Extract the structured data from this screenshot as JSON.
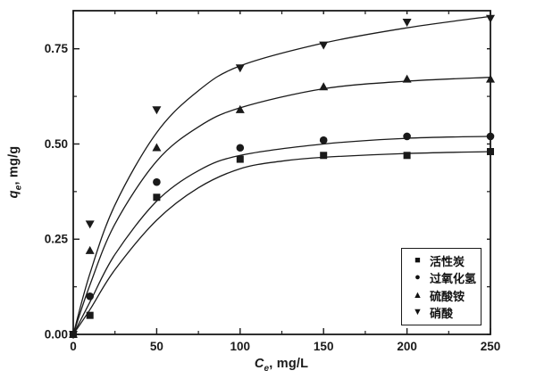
{
  "colors": {
    "ink": "#1a1a1a",
    "background": "#ffffff"
  },
  "chart_data": {
    "type": "scatter",
    "title": "",
    "xlabel": {
      "symbol": "C",
      "subscript": "e",
      "unit": ", mg/L"
    },
    "ylabel": {
      "symbol": "q",
      "subscript": "e",
      "unit": ", mg/g"
    },
    "xlim": [
      0,
      250
    ],
    "ylim": [
      0,
      0.85
    ],
    "grid": false,
    "legend_position": "bottom-right",
    "x_major_ticks": [
      0,
      50,
      100,
      150,
      200,
      250
    ],
    "x_tick_labels": [
      "0",
      "50",
      "100",
      "150",
      "200",
      "250"
    ],
    "x_minor_ticks": [
      25,
      75,
      125,
      175,
      225
    ],
    "y_major_ticks": [
      0,
      0.25,
      0.5,
      0.75
    ],
    "y_tick_labels": [
      "0.00",
      "0.25",
      "0.50",
      "0.75"
    ],
    "y_minor_ticks": [
      0.125,
      0.375,
      0.625
    ],
    "series": [
      {
        "name": "活性炭",
        "marker": "square",
        "marker_glyph": "■",
        "points": [
          [
            0,
            0
          ],
          [
            10,
            0.05
          ],
          [
            50,
            0.36
          ],
          [
            100,
            0.46
          ],
          [
            150,
            0.47
          ],
          [
            200,
            0.47
          ],
          [
            250,
            0.48
          ]
        ],
        "curve": [
          [
            0,
            0
          ],
          [
            10,
            0.065
          ],
          [
            25,
            0.17
          ],
          [
            50,
            0.3
          ],
          [
            75,
            0.385
          ],
          [
            100,
            0.435
          ],
          [
            125,
            0.455
          ],
          [
            150,
            0.465
          ],
          [
            200,
            0.475
          ],
          [
            250,
            0.48
          ]
        ]
      },
      {
        "name": "过氧化氢",
        "marker": "circle",
        "marker_glyph": "●",
        "points": [
          [
            0,
            0
          ],
          [
            10,
            0.1
          ],
          [
            50,
            0.4
          ],
          [
            100,
            0.49
          ],
          [
            150,
            0.51
          ],
          [
            200,
            0.52
          ],
          [
            250,
            0.52
          ]
        ],
        "curve": [
          [
            0,
            0
          ],
          [
            10,
            0.085
          ],
          [
            25,
            0.21
          ],
          [
            50,
            0.35
          ],
          [
            75,
            0.43
          ],
          [
            100,
            0.47
          ],
          [
            150,
            0.5
          ],
          [
            200,
            0.515
          ],
          [
            250,
            0.52
          ]
        ]
      },
      {
        "name": "硫酸铵",
        "marker": "triangle-up",
        "marker_glyph": "▲",
        "points": [
          [
            0,
            0
          ],
          [
            10,
            0.22
          ],
          [
            50,
            0.49
          ],
          [
            100,
            0.59
          ],
          [
            150,
            0.65
          ],
          [
            200,
            0.67
          ],
          [
            250,
            0.67
          ]
        ],
        "curve": [
          [
            0,
            0
          ],
          [
            10,
            0.13
          ],
          [
            25,
            0.29
          ],
          [
            50,
            0.455
          ],
          [
            75,
            0.545
          ],
          [
            100,
            0.595
          ],
          [
            150,
            0.645
          ],
          [
            200,
            0.665
          ],
          [
            250,
            0.675
          ]
        ]
      },
      {
        "name": "硝酸",
        "marker": "triangle-down",
        "marker_glyph": "▼",
        "points": [
          [
            0,
            0
          ],
          [
            10,
            0.29
          ],
          [
            50,
            0.59
          ],
          [
            100,
            0.7
          ],
          [
            150,
            0.76
          ],
          [
            200,
            0.82
          ],
          [
            250,
            0.83
          ]
        ],
        "curve": [
          [
            0,
            0
          ],
          [
            10,
            0.16
          ],
          [
            25,
            0.34
          ],
          [
            50,
            0.53
          ],
          [
            75,
            0.64
          ],
          [
            100,
            0.705
          ],
          [
            150,
            0.765
          ],
          [
            200,
            0.805
          ],
          [
            250,
            0.835
          ]
        ]
      }
    ]
  }
}
